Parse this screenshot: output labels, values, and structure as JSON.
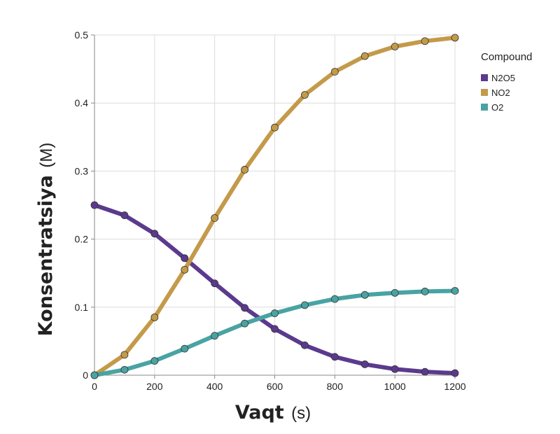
{
  "chart_data": {
    "type": "line",
    "x": [
      0,
      100,
      200,
      300,
      400,
      500,
      600,
      700,
      800,
      900,
      1000,
      1100,
      1200
    ],
    "series": [
      {
        "name": "N2O5",
        "color": "#5b3a8e",
        "values": [
          0.25,
          0.235,
          0.208,
          0.172,
          0.135,
          0.099,
          0.068,
          0.044,
          0.027,
          0.016,
          0.009,
          0.005,
          0.003
        ]
      },
      {
        "name": "NO2",
        "color": "#c49a4a",
        "values": [
          0.0,
          0.03,
          0.085,
          0.155,
          0.231,
          0.302,
          0.364,
          0.412,
          0.446,
          0.469,
          0.483,
          0.491,
          0.496
        ]
      },
      {
        "name": "O2",
        "color": "#4aa3a3",
        "values": [
          0.0,
          0.008,
          0.021,
          0.039,
          0.058,
          0.076,
          0.091,
          0.103,
          0.112,
          0.118,
          0.121,
          0.123,
          0.124
        ]
      }
    ],
    "xlim": [
      0,
      1200
    ],
    "ylim": [
      0,
      0.5
    ],
    "xticks": [
      "0",
      "200",
      "400",
      "600",
      "800",
      "1000",
      "1200"
    ],
    "yticks": [
      "0",
      "0.1",
      "0.2",
      "0.3",
      "0.4",
      "0.5"
    ],
    "xlabel": {
      "main": "Vaqt",
      "unit": "(s)"
    },
    "ylabel": {
      "main": "Konsentratsiya",
      "unit": "(M)"
    },
    "legend": {
      "title": "Compound",
      "placement": "right"
    },
    "grid": true
  }
}
